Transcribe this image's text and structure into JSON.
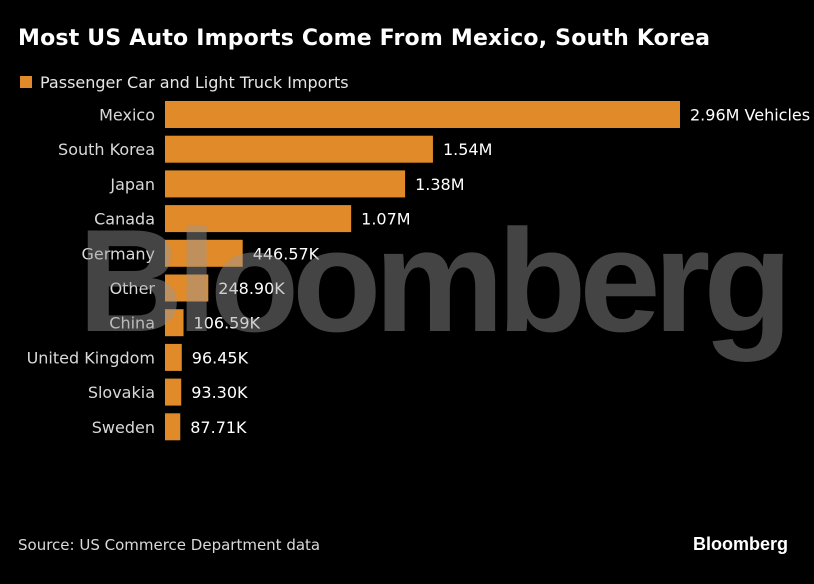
{
  "title": "Most US Auto Imports Come From Mexico, South Korea",
  "legend": {
    "label": "Passenger Car and Light Truck Imports"
  },
  "watermark": "Bloomberg",
  "source": "Source: US Commerce Department data",
  "logo": "Bloomberg",
  "colors": {
    "bar": "#e08a2a",
    "background": "#000000"
  },
  "chart_data": {
    "type": "bar",
    "orientation": "horizontal",
    "series": [
      {
        "name": "Passenger Car and Light Truck Imports",
        "values": [
          2960000,
          1540000,
          1380000,
          1070000,
          446570,
          248900,
          106590,
          96450,
          93300,
          87710
        ]
      }
    ],
    "categories": [
      "Mexico",
      "South Korea",
      "Japan",
      "Canada",
      "Germany",
      "Other",
      "China",
      "United Kingdom",
      "Slovakia",
      "Sweden"
    ],
    "value_labels": [
      "2.96M Vehicles",
      "1.54M",
      "1.38M",
      "1.07M",
      "446.57K",
      "248.90K",
      "106.59K",
      "96.45K",
      "93.30K",
      "87.71K"
    ],
    "xlim": [
      0,
      2960000
    ],
    "grid": false,
    "legend_position": "top-left"
  }
}
